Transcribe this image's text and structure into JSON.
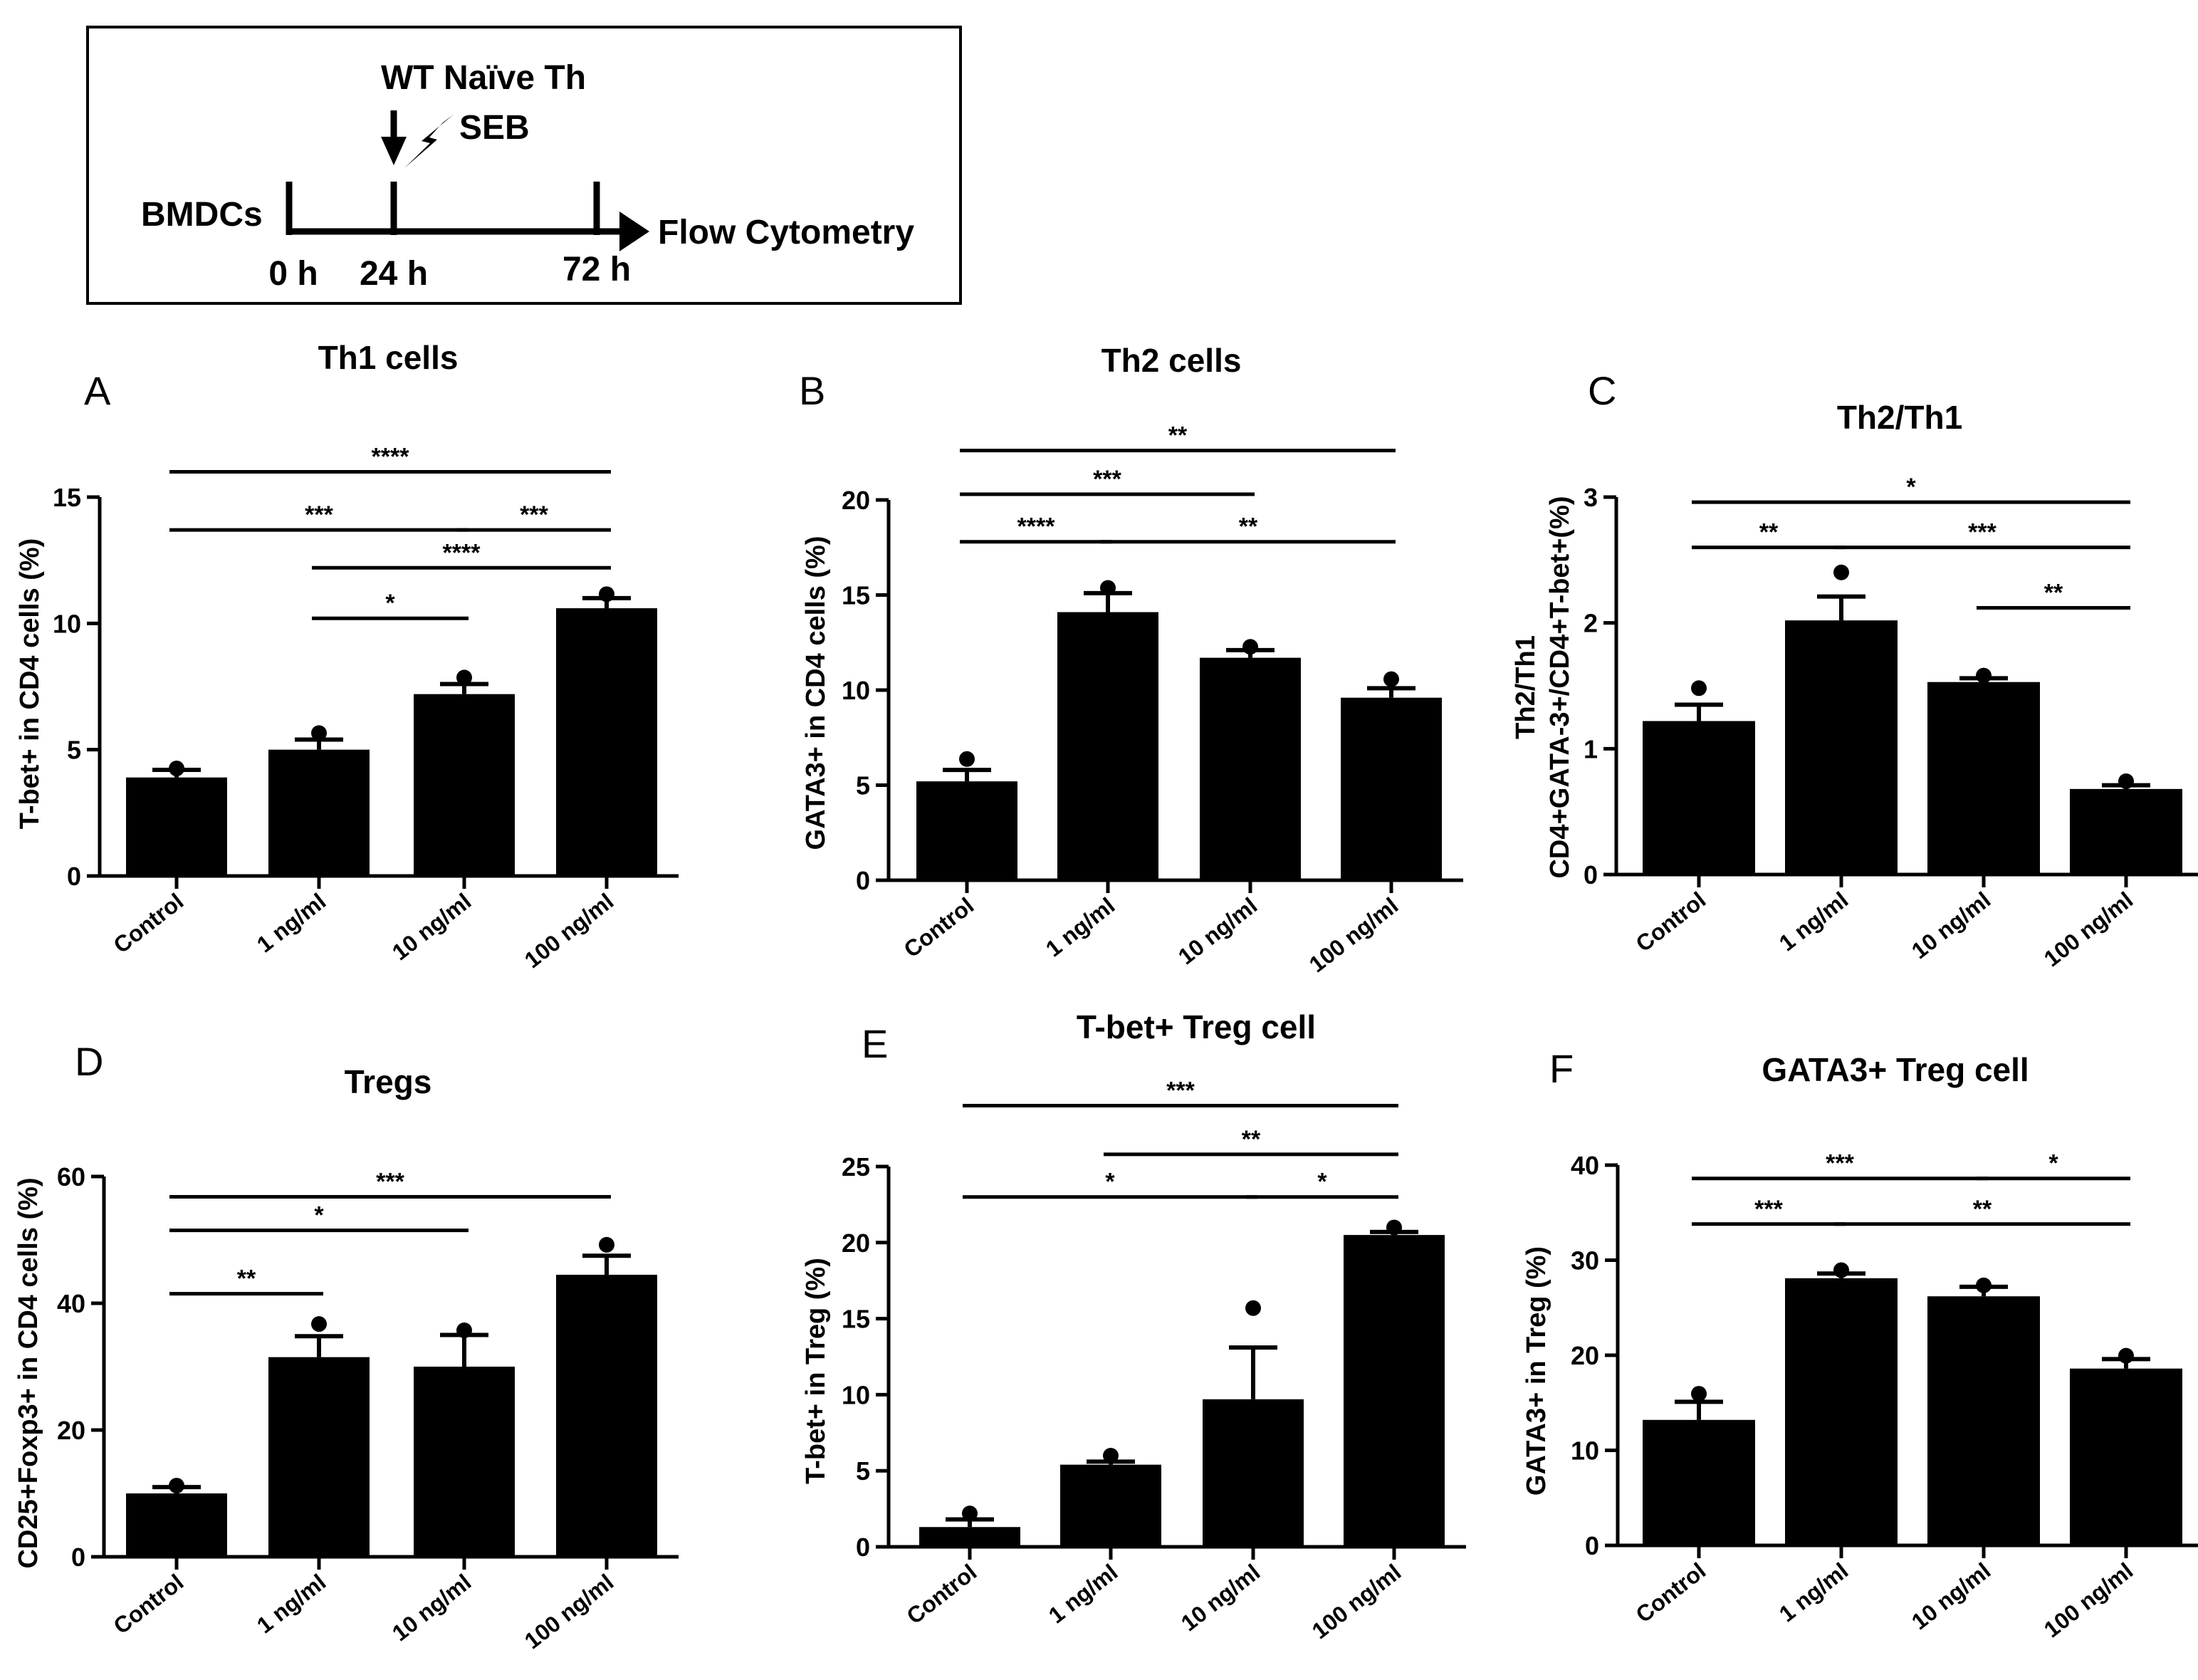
{
  "timeline": {
    "cells": "BMDCs",
    "treatment": "WT Naïve Th",
    "stimulus": "SEB",
    "readout": "Flow Cytometry",
    "times": [
      "0 h",
      "24 h",
      "72 h"
    ]
  },
  "chart_data": [
    {
      "letter": "A",
      "type": "bar",
      "title": "Th1 cells",
      "xlabel": "",
      "ylabel": "T-bet+ in CD4 cells (%)",
      "ylim": [
        0,
        15
      ],
      "yticks": [
        0,
        5,
        10,
        15
      ],
      "categories": [
        "Control",
        "1 ng/ml",
        "10 ng/ml",
        "100 ng/ml"
      ],
      "values": [
        3.9,
        5.0,
        7.2,
        10.6
      ],
      "errors": [
        0.3,
        0.4,
        0.4,
        0.4
      ],
      "points": [
        4.2,
        5.6,
        7.8,
        11.1
      ],
      "significance": [
        {
          "from": 0,
          "to": 3,
          "label": "****",
          "y": 16.0
        },
        {
          "from": 0,
          "to": 2,
          "label": "***",
          "y": 13.7
        },
        {
          "from": 2,
          "to": 3,
          "label": "***",
          "y": 13.7
        },
        {
          "from": 1,
          "to": 3,
          "label": "****",
          "y": 12.2
        },
        {
          "from": 1,
          "to": 2,
          "label": "*",
          "y": 10.2
        }
      ]
    },
    {
      "letter": "B",
      "type": "bar",
      "title": "Th2 cells",
      "xlabel": "",
      "ylabel": "GATA3+ in CD4 cells (%)",
      "ylim": [
        0,
        20
      ],
      "yticks": [
        0,
        5,
        10,
        15,
        20
      ],
      "categories": [
        "Control",
        "1 ng/ml",
        "10 ng/ml",
        "100 ng/ml"
      ],
      "values": [
        5.2,
        14.1,
        11.7,
        9.6
      ],
      "errors": [
        0.6,
        1.0,
        0.4,
        0.5
      ],
      "points": [
        6.3,
        15.3,
        12.2,
        10.5
      ],
      "significance": [
        {
          "from": 0,
          "to": 3,
          "label": "**",
          "y": 22.6
        },
        {
          "from": 0,
          "to": 2,
          "label": "***",
          "y": 20.3
        },
        {
          "from": 0,
          "to": 1,
          "label": "****",
          "y": 17.8
        },
        {
          "from": 1,
          "to": 3,
          "label": "**",
          "y": 17.8
        }
      ]
    },
    {
      "letter": "C",
      "type": "bar",
      "title": "Th2/Th1",
      "xlabel": "",
      "ylabel": "Th2/Th1",
      "ylabel2": "CD4+GATA-3+/CD4+T-bet+(%)",
      "ylim": [
        0,
        3
      ],
      "yticks": [
        0,
        1,
        2,
        3
      ],
      "categories": [
        "Control",
        "1 ng/ml",
        "10 ng/ml",
        "100 ng/ml"
      ],
      "values": [
        1.22,
        2.02,
        1.53,
        0.68
      ],
      "errors": [
        0.13,
        0.19,
        0.03,
        0.03
      ],
      "points": [
        1.47,
        2.39,
        1.57,
        0.73
      ],
      "significance": [
        {
          "from": 0,
          "to": 3,
          "label": "*",
          "y": 2.96
        },
        {
          "from": 0,
          "to": 1,
          "label": "**",
          "y": 2.6
        },
        {
          "from": 1,
          "to": 3,
          "label": "***",
          "y": 2.6
        },
        {
          "from": 2,
          "to": 3,
          "label": "**",
          "y": 2.12
        }
      ]
    },
    {
      "letter": "D",
      "type": "bar",
      "title": "Tregs",
      "xlabel": "",
      "ylabel": "CD25+Foxp3+ in CD4 cells (%)",
      "ylim": [
        0,
        60
      ],
      "yticks": [
        0,
        20,
        40,
        60
      ],
      "categories": [
        "Control",
        "1 ng/ml",
        "10 ng/ml",
        "100 ng/ml"
      ],
      "values": [
        10,
        31.5,
        30,
        44.5
      ],
      "errors": [
        1.0,
        3.3,
        5.0,
        3.0
      ],
      "points": [
        11,
        36.5,
        35.5,
        49
      ],
      "significance": [
        {
          "from": 0,
          "to": 3,
          "label": "***",
          "y": 56.8
        },
        {
          "from": 0,
          "to": 2,
          "label": "*",
          "y": 51.5
        },
        {
          "from": 0,
          "to": 1,
          "label": "**",
          "y": 41.5
        }
      ]
    },
    {
      "letter": "E",
      "type": "bar",
      "title": "T-bet+ Treg cell",
      "xlabel": "",
      "ylabel": "T-bet+ in Treg (%)",
      "ylim": [
        0,
        25
      ],
      "yticks": [
        0,
        5,
        10,
        15,
        20,
        25
      ],
      "categories": [
        "Control",
        "1 ng/ml",
        "10 ng/ml",
        "100 ng/ml"
      ],
      "values": [
        1.3,
        5.4,
        9.7,
        20.5
      ],
      "errors": [
        0.5,
        0.2,
        3.4,
        0.2
      ],
      "points": [
        2.1,
        5.9,
        15.6,
        20.9
      ],
      "significance": [
        {
          "from": 0,
          "to": 3,
          "label": "***",
          "y": 29.0
        },
        {
          "from": 1,
          "to": 3,
          "label": "**",
          "y": 25.8
        },
        {
          "from": 0,
          "to": 2,
          "label": "*",
          "y": 23.0
        },
        {
          "from": 2,
          "to": 3,
          "label": "*",
          "y": 23.0
        }
      ]
    },
    {
      "letter": "F",
      "type": "bar",
      "title": "GATA3+ Treg cell",
      "xlabel": "",
      "ylabel": "GATA3+ in Treg (%)",
      "ylim": [
        0,
        40
      ],
      "yticks": [
        0,
        10,
        20,
        30,
        40
      ],
      "categories": [
        "Control",
        "1 ng/ml",
        "10 ng/ml",
        "100 ng/ml"
      ],
      "values": [
        13.2,
        28.1,
        26.2,
        18.6
      ],
      "errors": [
        1.9,
        0.5,
        1.0,
        1.0
      ],
      "points": [
        15.8,
        28.8,
        27.2,
        19.8
      ],
      "significance": [
        {
          "from": 0,
          "to": 2,
          "label": "***",
          "y": 38.6
        },
        {
          "from": 2,
          "to": 3,
          "label": "*",
          "y": 38.6
        },
        {
          "from": 0,
          "to": 1,
          "label": "***",
          "y": 33.8
        },
        {
          "from": 1,
          "to": 3,
          "label": "**",
          "y": 33.8
        }
      ]
    }
  ]
}
